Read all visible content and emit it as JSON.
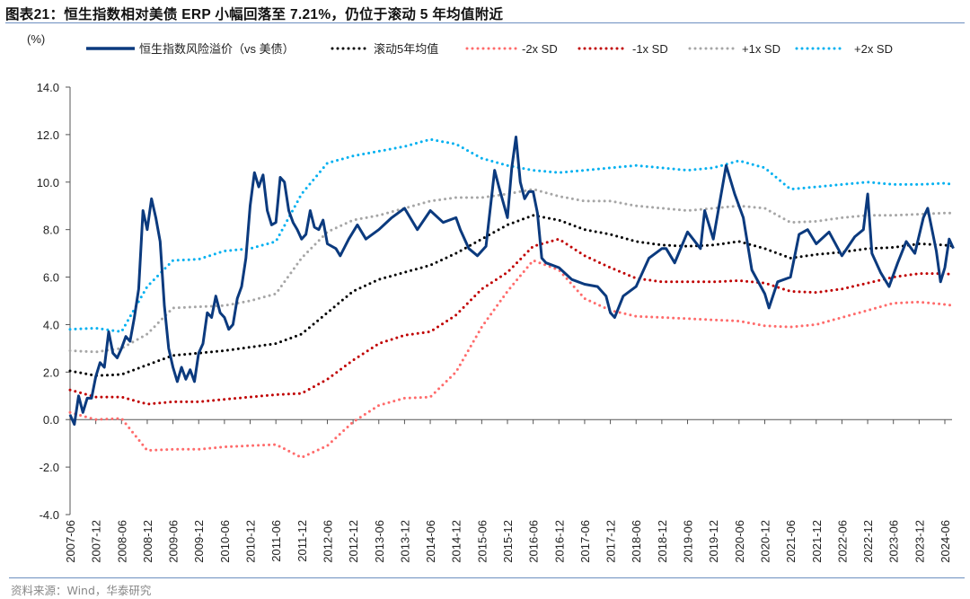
{
  "header": {
    "title": "图表21：恒生指数相对美债 ERP 小幅回落至 7.21%，仍位于滚动 5 年均值附近",
    "unit": "(%)",
    "source": "资料来源：Wind，华泰研究"
  },
  "chart_data": {
    "type": "line",
    "title": "",
    "xlabel": "",
    "ylabel": "(%)",
    "ylim": [
      -4.0,
      14.0
    ],
    "yticks": [
      "14.0",
      "12.0",
      "10.0",
      "8.0",
      "6.0",
      "4.0",
      "2.0",
      "0.0",
      "-2.0",
      "-4.0"
    ],
    "ytick_values": [
      14,
      12,
      10,
      8,
      6,
      4,
      2,
      0,
      -2,
      -4
    ],
    "xlim": [
      "2007-06",
      "2024-08"
    ],
    "xticks": [
      "2007-06",
      "2007-12",
      "2008-06",
      "2008-12",
      "2009-06",
      "2009-12",
      "2010-06",
      "2010-12",
      "2011-06",
      "2011-12",
      "2012-06",
      "2012-12",
      "2013-06",
      "2013-12",
      "2014-06",
      "2014-12",
      "2015-06",
      "2015-12",
      "2016-06",
      "2016-12",
      "2017-06",
      "2017-12",
      "2018-06",
      "2018-12",
      "2019-06",
      "2019-12",
      "2020-06",
      "2020-12",
      "2021-06",
      "2021-12",
      "2022-06",
      "2022-12",
      "2023-06",
      "2023-12",
      "2024-06"
    ],
    "grid": false,
    "legend_position": "top",
    "band_dates": [
      "2007-06",
      "2007-12",
      "2008-06",
      "2008-12",
      "2009-06",
      "2009-12",
      "2010-06",
      "2010-12",
      "2011-06",
      "2011-12",
      "2012-06",
      "2012-12",
      "2013-06",
      "2013-12",
      "2014-06",
      "2014-12",
      "2015-06",
      "2015-12",
      "2016-06",
      "2016-12",
      "2017-06",
      "2017-12",
      "2018-06",
      "2018-12",
      "2019-06",
      "2019-12",
      "2020-06",
      "2020-12",
      "2021-06",
      "2021-12",
      "2022-06",
      "2022-12",
      "2023-06",
      "2023-12",
      "2024-06",
      "2024-08"
    ],
    "series": [
      {
        "name": "恒生指数风险溢价（vs 美债）",
        "style": "solid",
        "color": "#0b3a7e",
        "points": [
          [
            "2007-06",
            0.2
          ],
          [
            "2007-07",
            -0.2
          ],
          [
            "2007-08",
            1.0
          ],
          [
            "2007-09",
            0.3
          ],
          [
            "2007-10",
            0.9
          ],
          [
            "2007-11",
            0.9
          ],
          [
            "2007-12",
            1.8
          ],
          [
            "2008-01",
            2.4
          ],
          [
            "2008-02",
            2.2
          ],
          [
            "2008-03",
            3.7
          ],
          [
            "2008-04",
            2.8
          ],
          [
            "2008-05",
            2.6
          ],
          [
            "2008-06",
            3.0
          ],
          [
            "2008-07",
            3.5
          ],
          [
            "2008-08",
            3.3
          ],
          [
            "2008-09",
            4.3
          ],
          [
            "2008-10",
            5.5
          ],
          [
            "2008-11",
            8.8
          ],
          [
            "2008-12",
            8.0
          ],
          [
            "2009-01",
            9.3
          ],
          [
            "2009-02",
            8.5
          ],
          [
            "2009-03",
            7.5
          ],
          [
            "2009-04",
            4.8
          ],
          [
            "2009-05",
            3.0
          ],
          [
            "2009-06",
            2.2
          ],
          [
            "2009-07",
            1.6
          ],
          [
            "2009-08",
            2.2
          ],
          [
            "2009-09",
            1.7
          ],
          [
            "2009-10",
            2.1
          ],
          [
            "2009-11",
            1.6
          ],
          [
            "2009-12",
            2.8
          ],
          [
            "2010-01",
            3.2
          ],
          [
            "2010-02",
            4.5
          ],
          [
            "2010-03",
            4.3
          ],
          [
            "2010-04",
            5.2
          ],
          [
            "2010-05",
            4.5
          ],
          [
            "2010-06",
            4.3
          ],
          [
            "2010-07",
            3.8
          ],
          [
            "2010-08",
            4.0
          ],
          [
            "2010-09",
            5.1
          ],
          [
            "2010-10",
            5.6
          ],
          [
            "2010-11",
            6.8
          ],
          [
            "2010-12",
            9.0
          ],
          [
            "2011-01",
            10.4
          ],
          [
            "2011-02",
            9.8
          ],
          [
            "2011-03",
            10.3
          ],
          [
            "2011-04",
            8.8
          ],
          [
            "2011-05",
            8.2
          ],
          [
            "2011-06",
            8.3
          ],
          [
            "2011-07",
            10.2
          ],
          [
            "2011-08",
            10.0
          ],
          [
            "2011-09",
            8.8
          ],
          [
            "2011-10",
            8.3
          ],
          [
            "2011-11",
            8.0
          ],
          [
            "2011-12",
            7.6
          ],
          [
            "2012-01",
            7.8
          ],
          [
            "2012-02",
            8.8
          ],
          [
            "2012-03",
            8.1
          ],
          [
            "2012-04",
            8.0
          ],
          [
            "2012-05",
            8.4
          ],
          [
            "2012-06",
            7.4
          ],
          [
            "2012-08",
            7.2
          ],
          [
            "2012-09",
            6.9
          ],
          [
            "2012-11",
            7.6
          ],
          [
            "2013-01",
            8.2
          ],
          [
            "2013-03",
            7.6
          ],
          [
            "2013-06",
            8.0
          ],
          [
            "2013-09",
            8.5
          ],
          [
            "2013-12",
            8.9
          ],
          [
            "2014-03",
            8.0
          ],
          [
            "2014-06",
            8.8
          ],
          [
            "2014-09",
            8.3
          ],
          [
            "2014-12",
            8.5
          ],
          [
            "2015-01",
            8.0
          ],
          [
            "2015-03",
            7.2
          ],
          [
            "2015-05",
            6.9
          ],
          [
            "2015-07",
            7.3
          ],
          [
            "2015-09",
            10.5
          ],
          [
            "2015-10",
            9.8
          ],
          [
            "2015-12",
            8.5
          ],
          [
            "2016-01",
            10.6
          ],
          [
            "2016-02",
            11.9
          ],
          [
            "2016-03",
            10.0
          ],
          [
            "2016-04",
            9.3
          ],
          [
            "2016-05",
            9.6
          ],
          [
            "2016-06",
            9.6
          ],
          [
            "2016-07",
            8.7
          ],
          [
            "2016-08",
            6.8
          ],
          [
            "2016-09",
            6.6
          ],
          [
            "2016-12",
            6.4
          ],
          [
            "2017-03",
            5.9
          ],
          [
            "2017-06",
            5.7
          ],
          [
            "2017-09",
            5.6
          ],
          [
            "2017-11",
            5.2
          ],
          [
            "2017-12",
            4.5
          ],
          [
            "2018-01",
            4.3
          ],
          [
            "2018-03",
            5.2
          ],
          [
            "2018-06",
            5.6
          ],
          [
            "2018-09",
            6.8
          ],
          [
            "2018-12",
            7.2
          ],
          [
            "2019-01",
            7.2
          ],
          [
            "2019-03",
            6.6
          ],
          [
            "2019-06",
            7.9
          ],
          [
            "2019-09",
            7.2
          ],
          [
            "2019-10",
            8.8
          ],
          [
            "2019-12",
            7.6
          ],
          [
            "2020-03",
            10.7
          ],
          [
            "2020-05",
            9.5
          ],
          [
            "2020-07",
            8.5
          ],
          [
            "2020-09",
            6.3
          ],
          [
            "2020-12",
            5.3
          ],
          [
            "2021-01",
            4.7
          ],
          [
            "2021-03",
            5.8
          ],
          [
            "2021-06",
            6.0
          ],
          [
            "2021-08",
            7.8
          ],
          [
            "2021-10",
            8.0
          ],
          [
            "2021-12",
            7.4
          ],
          [
            "2022-03",
            7.9
          ],
          [
            "2022-06",
            6.9
          ],
          [
            "2022-09",
            7.7
          ],
          [
            "2022-11",
            8.0
          ],
          [
            "2022-12",
            9.5
          ],
          [
            "2023-01",
            7.0
          ],
          [
            "2023-03",
            6.2
          ],
          [
            "2023-05",
            5.6
          ],
          [
            "2023-07",
            6.6
          ],
          [
            "2023-09",
            7.5
          ],
          [
            "2023-11",
            7.0
          ],
          [
            "2024-01",
            8.5
          ],
          [
            "2024-02",
            8.9
          ],
          [
            "2024-04",
            7.1
          ],
          [
            "2024-05",
            5.8
          ],
          [
            "2024-06",
            6.4
          ],
          [
            "2024-07",
            7.6
          ],
          [
            "2024-08",
            7.21
          ]
        ]
      },
      {
        "name": "滚动5年均值",
        "style": "dotted",
        "color": "#000000",
        "values": [
          2.05,
          1.85,
          1.9,
          2.3,
          2.7,
          2.8,
          2.9,
          3.05,
          3.2,
          3.6,
          4.5,
          5.4,
          5.9,
          6.2,
          6.5,
          7.0,
          7.6,
          8.2,
          8.6,
          8.4,
          8.0,
          7.8,
          7.5,
          7.35,
          7.3,
          7.35,
          7.5,
          7.2,
          6.8,
          6.95,
          7.05,
          7.2,
          7.25,
          7.4,
          7.35,
          7.3
        ]
      },
      {
        "name": "-2x SD",
        "style": "dotted",
        "color": "#ff6b6b",
        "values": [
          0.3,
          0.0,
          0.05,
          -1.3,
          -1.25,
          -1.25,
          -1.15,
          -1.1,
          -1.05,
          -1.6,
          -1.1,
          -0.1,
          0.6,
          0.9,
          0.95,
          2.0,
          3.9,
          5.4,
          6.7,
          6.3,
          5.1,
          4.6,
          4.35,
          4.3,
          4.25,
          4.2,
          4.15,
          3.95,
          3.9,
          4.0,
          4.3,
          4.6,
          4.9,
          4.95,
          4.85,
          4.8
        ]
      },
      {
        "name": "-1x SD",
        "style": "dotted",
        "color": "#c00000",
        "values": [
          1.25,
          0.95,
          0.95,
          0.65,
          0.75,
          0.75,
          0.85,
          0.95,
          1.05,
          1.1,
          1.7,
          2.5,
          3.2,
          3.55,
          3.7,
          4.4,
          5.5,
          6.2,
          7.3,
          7.6,
          6.9,
          6.4,
          5.95,
          5.8,
          5.8,
          5.8,
          5.85,
          5.75,
          5.4,
          5.35,
          5.5,
          5.75,
          6.0,
          6.15,
          6.15,
          6.1
        ]
      },
      {
        "name": "+1x SD",
        "style": "dotted",
        "color": "#a6a6a6",
        "values": [
          2.9,
          2.85,
          3.0,
          3.6,
          4.7,
          4.75,
          4.8,
          5.0,
          5.3,
          6.8,
          7.9,
          8.4,
          8.6,
          8.9,
          9.2,
          9.35,
          9.35,
          9.5,
          9.7,
          9.4,
          9.2,
          9.2,
          9.0,
          8.9,
          8.8,
          8.9,
          9.0,
          8.9,
          8.3,
          8.35,
          8.5,
          8.6,
          8.6,
          8.65,
          8.7,
          8.7
        ]
      },
      {
        "name": "+2x SD",
        "style": "dotted",
        "color": "#00b0f0",
        "values": [
          3.8,
          3.85,
          3.7,
          5.6,
          6.7,
          6.75,
          7.1,
          7.2,
          7.5,
          9.5,
          10.8,
          11.1,
          11.3,
          11.5,
          11.8,
          11.6,
          11.0,
          10.7,
          10.5,
          10.4,
          10.5,
          10.6,
          10.7,
          10.6,
          10.5,
          10.6,
          10.9,
          10.6,
          9.7,
          9.8,
          9.9,
          10.0,
          9.9,
          9.9,
          9.95,
          9.9
        ]
      }
    ]
  }
}
